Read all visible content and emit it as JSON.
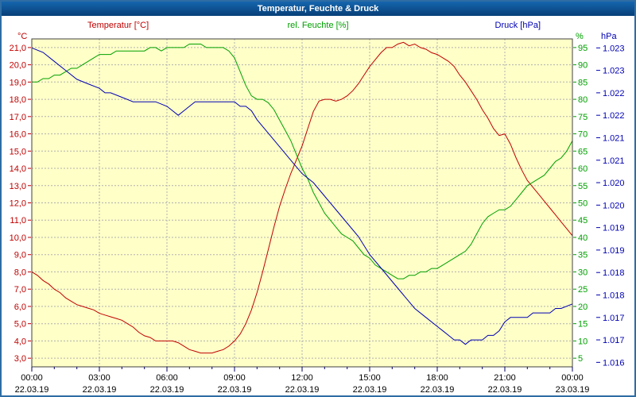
{
  "window": {
    "title": "Temperatur, Feuchte & Druck"
  },
  "legend": {
    "temperature": "Temperatur [°C]",
    "humidity": "rel. Feuchte [%]",
    "pressure": "Druck [hPa]"
  },
  "colors": {
    "temperature": "#c00000",
    "humidity": "#00a000",
    "pressure": "#0000b4",
    "plot_bg": "#ffffc8",
    "grid": "#b0b0b0",
    "frame": "#2e6da4",
    "titlebar_top": "#1565ad",
    "titlebar_bottom": "#073f77",
    "plot_border": "#404040",
    "x_tick": "#000060",
    "time_text": "#000000"
  },
  "chart_data": {
    "type": "line",
    "title": "Temperatur, Feuchte & Druck",
    "grid": true,
    "x_axis": {
      "min": 0,
      "max": 24,
      "minor_tick_hours": 1,
      "ticks": [
        {
          "t": 0,
          "time": "00:00",
          "date": "22.03.19"
        },
        {
          "t": 3,
          "time": "03:00",
          "date": "22.03.19"
        },
        {
          "t": 6,
          "time": "06:00",
          "date": "22.03.19"
        },
        {
          "t": 9,
          "time": "09:00",
          "date": "22.03.19"
        },
        {
          "t": 12,
          "time": "12:00",
          "date": "22.03.19"
        },
        {
          "t": 15,
          "time": "15:00",
          "date": "22.03.19"
        },
        {
          "t": 18,
          "time": "18:00",
          "date": "22.03.19"
        },
        {
          "t": 21,
          "time": "21:00",
          "date": "22.03.19"
        },
        {
          "t": 24,
          "time": "00:00",
          "date": "23.03.19"
        }
      ]
    },
    "y_axes": {
      "temperature": {
        "unit": "°C",
        "side": "left",
        "color": "#c00000",
        "min": 2.5,
        "max": 21.5,
        "tick_values": [
          21,
          20,
          19,
          18,
          17,
          16,
          15,
          14,
          13,
          12,
          11,
          10,
          9,
          8,
          7,
          6,
          5,
          4,
          3
        ],
        "tick_labels": [
          "21,0",
          "20,0",
          "19,0",
          "18,0",
          "17,0",
          "16,0",
          "15,0",
          "14,0",
          "13,0",
          "12,0",
          "11,0",
          "10,0",
          "9,0",
          "8,0",
          "7,0",
          "6,0",
          "5,0",
          "4,0",
          "3,0"
        ]
      },
      "humidity": {
        "unit": "%",
        "side": "right",
        "color": "#00a000",
        "min": 2.5,
        "max": 97.5,
        "tick_values": [
          95,
          90,
          85,
          80,
          75,
          70,
          65,
          60,
          55,
          50,
          45,
          40,
          35,
          30,
          25,
          20,
          15,
          10,
          5
        ],
        "tick_labels": [
          "95",
          "90",
          "85",
          "80",
          "75",
          "70",
          "65",
          "60",
          "55",
          "50",
          "45",
          "40",
          "35",
          "30",
          "25",
          "20",
          "15",
          "10",
          "5"
        ]
      },
      "pressure": {
        "unit": "hPa",
        "side": "far-right",
        "color": "#0000b4",
        "min": 1.0159,
        "max": 1.0232,
        "tick_values": [
          1.023,
          1.0225,
          1.022,
          1.0215,
          1.021,
          1.0205,
          1.02,
          1.0195,
          1.019,
          1.0185,
          1.018,
          1.0175,
          1.017,
          1.0165,
          1.016
        ],
        "tick_labels": [
          "1.023",
          "1.023",
          "1.022",
          "1.022",
          "1.021",
          "1.021",
          "1.020",
          "1.020",
          "1.019",
          "1.019",
          "1.018",
          "1.018",
          "1.017",
          "1.017",
          "1.016"
        ]
      }
    },
    "series": [
      {
        "id": "temperature",
        "name": "Temperatur [°C]",
        "axis": "temperature",
        "color": "#c00000",
        "points": [
          [
            0,
            8.0
          ],
          [
            0.25,
            7.8
          ],
          [
            0.5,
            7.5
          ],
          [
            0.75,
            7.3
          ],
          [
            1,
            7.0
          ],
          [
            1.25,
            6.8
          ],
          [
            1.5,
            6.5
          ],
          [
            1.75,
            6.3
          ],
          [
            2,
            6.1
          ],
          [
            2.25,
            6.0
          ],
          [
            2.5,
            5.9
          ],
          [
            2.75,
            5.8
          ],
          [
            3,
            5.6
          ],
          [
            3.25,
            5.5
          ],
          [
            3.5,
            5.4
          ],
          [
            3.75,
            5.3
          ],
          [
            4,
            5.2
          ],
          [
            4.25,
            5.0
          ],
          [
            4.5,
            4.8
          ],
          [
            4.75,
            4.5
          ],
          [
            5,
            4.3
          ],
          [
            5.25,
            4.2
          ],
          [
            5.5,
            4.0
          ],
          [
            5.75,
            4.0
          ],
          [
            6,
            4.0
          ],
          [
            6.25,
            4.0
          ],
          [
            6.5,
            3.9
          ],
          [
            6.75,
            3.7
          ],
          [
            7,
            3.5
          ],
          [
            7.25,
            3.4
          ],
          [
            7.5,
            3.3
          ],
          [
            7.75,
            3.3
          ],
          [
            8,
            3.3
          ],
          [
            8.25,
            3.4
          ],
          [
            8.5,
            3.5
          ],
          [
            8.75,
            3.7
          ],
          [
            9,
            4.0
          ],
          [
            9.25,
            4.4
          ],
          [
            9.5,
            5.0
          ],
          [
            9.75,
            5.8
          ],
          [
            10,
            6.8
          ],
          [
            10.25,
            8.0
          ],
          [
            10.5,
            9.3
          ],
          [
            10.75,
            10.6
          ],
          [
            11,
            11.8
          ],
          [
            11.25,
            12.8
          ],
          [
            11.5,
            13.7
          ],
          [
            11.75,
            14.5
          ],
          [
            12,
            15.3
          ],
          [
            12.25,
            16.3
          ],
          [
            12.5,
            17.3
          ],
          [
            12.75,
            17.9
          ],
          [
            13,
            18.0
          ],
          [
            13.25,
            18.0
          ],
          [
            13.5,
            17.9
          ],
          [
            13.75,
            18.0
          ],
          [
            14,
            18.2
          ],
          [
            14.25,
            18.5
          ],
          [
            14.5,
            18.9
          ],
          [
            14.75,
            19.4
          ],
          [
            15,
            19.9
          ],
          [
            15.25,
            20.3
          ],
          [
            15.5,
            20.7
          ],
          [
            15.75,
            21.0
          ],
          [
            16,
            21.0
          ],
          [
            16.25,
            21.2
          ],
          [
            16.5,
            21.3
          ],
          [
            16.75,
            21.1
          ],
          [
            17,
            21.2
          ],
          [
            17.25,
            21.0
          ],
          [
            17.5,
            20.9
          ],
          [
            17.75,
            20.7
          ],
          [
            18,
            20.6
          ],
          [
            18.25,
            20.4
          ],
          [
            18.5,
            20.2
          ],
          [
            18.75,
            19.9
          ],
          [
            19,
            19.4
          ],
          [
            19.25,
            19.0
          ],
          [
            19.5,
            18.5
          ],
          [
            19.75,
            18.0
          ],
          [
            20,
            17.4
          ],
          [
            20.25,
            16.9
          ],
          [
            20.5,
            16.3
          ],
          [
            20.75,
            15.9
          ],
          [
            21,
            16.0
          ],
          [
            21.25,
            15.4
          ],
          [
            21.5,
            14.6
          ],
          [
            21.75,
            13.9
          ],
          [
            22,
            13.3
          ],
          [
            22.25,
            12.9
          ],
          [
            22.5,
            12.5
          ],
          [
            22.75,
            12.1
          ],
          [
            23,
            11.7
          ],
          [
            23.25,
            11.3
          ],
          [
            23.5,
            10.9
          ],
          [
            23.75,
            10.5
          ],
          [
            24,
            10.1
          ]
        ]
      },
      {
        "id": "humidity",
        "name": "rel. Feuchte [%]",
        "axis": "humidity",
        "color": "#00a000",
        "points": [
          [
            0,
            85
          ],
          [
            0.25,
            85
          ],
          [
            0.5,
            86
          ],
          [
            0.75,
            86
          ],
          [
            1,
            87
          ],
          [
            1.25,
            87
          ],
          [
            1.5,
            88
          ],
          [
            1.75,
            89
          ],
          [
            2,
            89
          ],
          [
            2.25,
            90
          ],
          [
            2.5,
            91
          ],
          [
            2.75,
            92
          ],
          [
            3,
            93
          ],
          [
            3.25,
            93
          ],
          [
            3.5,
            93
          ],
          [
            3.75,
            94
          ],
          [
            4,
            94
          ],
          [
            4.25,
            94
          ],
          [
            4.5,
            94
          ],
          [
            4.75,
            94
          ],
          [
            5,
            94
          ],
          [
            5.25,
            95
          ],
          [
            5.5,
            95
          ],
          [
            5.75,
            94
          ],
          [
            6,
            95
          ],
          [
            6.25,
            95
          ],
          [
            6.5,
            95
          ],
          [
            6.75,
            95
          ],
          [
            7,
            96
          ],
          [
            7.25,
            96
          ],
          [
            7.5,
            96
          ],
          [
            7.75,
            95
          ],
          [
            8,
            95
          ],
          [
            8.25,
            95
          ],
          [
            8.5,
            95
          ],
          [
            8.75,
            94
          ],
          [
            9,
            92
          ],
          [
            9.25,
            88
          ],
          [
            9.5,
            84
          ],
          [
            9.75,
            81
          ],
          [
            10,
            80
          ],
          [
            10.25,
            80
          ],
          [
            10.5,
            79
          ],
          [
            10.75,
            77
          ],
          [
            11,
            74
          ],
          [
            11.25,
            71
          ],
          [
            11.5,
            68
          ],
          [
            11.75,
            64
          ],
          [
            12,
            60
          ],
          [
            12.25,
            57
          ],
          [
            12.5,
            53
          ],
          [
            12.75,
            50
          ],
          [
            13,
            47
          ],
          [
            13.25,
            45
          ],
          [
            13.5,
            43
          ],
          [
            13.75,
            41
          ],
          [
            14,
            40
          ],
          [
            14.25,
            39
          ],
          [
            14.5,
            37
          ],
          [
            14.75,
            35
          ],
          [
            15,
            34
          ],
          [
            15.25,
            32
          ],
          [
            15.5,
            31
          ],
          [
            15.75,
            30
          ],
          [
            16,
            29
          ],
          [
            16.25,
            28
          ],
          [
            16.5,
            28
          ],
          [
            16.75,
            29
          ],
          [
            17,
            29
          ],
          [
            17.25,
            30
          ],
          [
            17.5,
            30
          ],
          [
            17.75,
            31
          ],
          [
            18,
            31
          ],
          [
            18.25,
            32
          ],
          [
            18.5,
            33
          ],
          [
            18.75,
            34
          ],
          [
            19,
            35
          ],
          [
            19.25,
            36
          ],
          [
            19.5,
            38
          ],
          [
            19.75,
            41
          ],
          [
            20,
            44
          ],
          [
            20.25,
            46
          ],
          [
            20.5,
            47
          ],
          [
            20.75,
            48
          ],
          [
            21,
            48
          ],
          [
            21.25,
            49
          ],
          [
            21.5,
            51
          ],
          [
            21.75,
            53
          ],
          [
            22,
            55
          ],
          [
            22.25,
            56
          ],
          [
            22.5,
            57
          ],
          [
            22.75,
            58
          ],
          [
            23,
            60
          ],
          [
            23.25,
            62
          ],
          [
            23.5,
            63
          ],
          [
            23.75,
            65
          ],
          [
            24,
            68
          ]
        ]
      },
      {
        "id": "pressure",
        "name": "Druck [hPa]",
        "axis": "pressure",
        "color": "#0000b4",
        "points": [
          [
            0,
            1.023
          ],
          [
            0.5,
            1.0229
          ],
          [
            1,
            1.0227
          ],
          [
            1.5,
            1.0225
          ],
          [
            2,
            1.0223
          ],
          [
            2.5,
            1.0222
          ],
          [
            3,
            1.0221
          ],
          [
            3.25,
            1.022
          ],
          [
            3.5,
            1.022
          ],
          [
            4,
            1.0219
          ],
          [
            4.5,
            1.0218
          ],
          [
            5,
            1.0218
          ],
          [
            5.5,
            1.0218
          ],
          [
            6,
            1.0217
          ],
          [
            6.25,
            1.0216
          ],
          [
            6.5,
            1.0215
          ],
          [
            6.75,
            1.0216
          ],
          [
            7,
            1.0217
          ],
          [
            7.25,
            1.0218
          ],
          [
            7.5,
            1.0218
          ],
          [
            8,
            1.0218
          ],
          [
            8.5,
            1.0218
          ],
          [
            9,
            1.0218
          ],
          [
            9.25,
            1.0217
          ],
          [
            9.5,
            1.0217
          ],
          [
            9.75,
            1.0216
          ],
          [
            10,
            1.0214
          ],
          [
            10.5,
            1.0211
          ],
          [
            11,
            1.0208
          ],
          [
            11.5,
            1.0205
          ],
          [
            12,
            1.0202
          ],
          [
            12.5,
            1.02
          ],
          [
            13,
            1.0197
          ],
          [
            13.5,
            1.0194
          ],
          [
            14,
            1.0191
          ],
          [
            14.5,
            1.0188
          ],
          [
            15,
            1.0184
          ],
          [
            15.5,
            1.0181
          ],
          [
            16,
            1.0178
          ],
          [
            16.5,
            1.0175
          ],
          [
            17,
            1.0172
          ],
          [
            17.5,
            1.017
          ],
          [
            18,
            1.0168
          ],
          [
            18.25,
            1.0167
          ],
          [
            18.5,
            1.0166
          ],
          [
            18.75,
            1.0165
          ],
          [
            19,
            1.0165
          ],
          [
            19.25,
            1.0164
          ],
          [
            19.5,
            1.0165
          ],
          [
            20,
            1.0165
          ],
          [
            20.25,
            1.0166
          ],
          [
            20.5,
            1.0166
          ],
          [
            20.75,
            1.0167
          ],
          [
            21,
            1.0169
          ],
          [
            21.25,
            1.017
          ],
          [
            21.5,
            1.017
          ],
          [
            22,
            1.017
          ],
          [
            22.25,
            1.0171
          ],
          [
            22.5,
            1.0171
          ],
          [
            23,
            1.0171
          ],
          [
            23.25,
            1.0172
          ],
          [
            23.5,
            1.0172
          ],
          [
            24,
            1.0173
          ]
        ]
      }
    ]
  }
}
